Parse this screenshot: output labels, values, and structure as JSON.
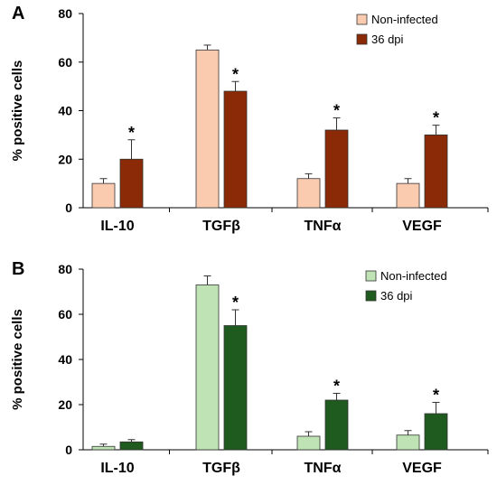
{
  "chart_data": [
    {
      "type": "bar",
      "panel_label": "A",
      "ylabel": "% positive cells",
      "ylim": [
        0,
        80
      ],
      "yticks": [
        "0",
        "20",
        "40",
        "60",
        "80"
      ],
      "categories": [
        "IL-10",
        "TGFβ",
        "TNFα",
        "VEGF"
      ],
      "legend_position": "top-right",
      "series": [
        {
          "name": "Non-infected",
          "color": "#FBCBB0",
          "values": [
            10,
            65,
            12,
            10
          ],
          "errors": [
            2,
            2,
            2,
            2
          ],
          "significant": [
            false,
            false,
            false,
            false
          ]
        },
        {
          "name": "36 dpi",
          "color": "#8B2A06",
          "values": [
            20,
            48,
            32,
            30
          ],
          "errors": [
            8,
            4,
            5,
            4
          ],
          "significant": [
            true,
            true,
            true,
            true
          ]
        }
      ],
      "significance_marker": "*"
    },
    {
      "type": "bar",
      "panel_label": "B",
      "ylabel": "% positive cells",
      "ylim": [
        0,
        80
      ],
      "yticks": [
        "0",
        "20",
        "40",
        "60",
        "80"
      ],
      "categories": [
        "IL-10",
        "TGFβ",
        "TNFα",
        "VEGF"
      ],
      "legend_position": "top-right",
      "series": [
        {
          "name": "Non-infected",
          "color": "#BFE3B4",
          "values": [
            1.5,
            73,
            6,
            6.5
          ],
          "errors": [
            1,
            4,
            2,
            2
          ],
          "significant": [
            false,
            false,
            false,
            false
          ]
        },
        {
          "name": "36 dpi",
          "color": "#1F5A1F",
          "values": [
            3.5,
            55,
            22,
            16
          ],
          "errors": [
            1,
            7,
            3,
            5
          ],
          "significant": [
            false,
            true,
            true,
            true
          ]
        }
      ],
      "significance_marker": "*"
    }
  ]
}
